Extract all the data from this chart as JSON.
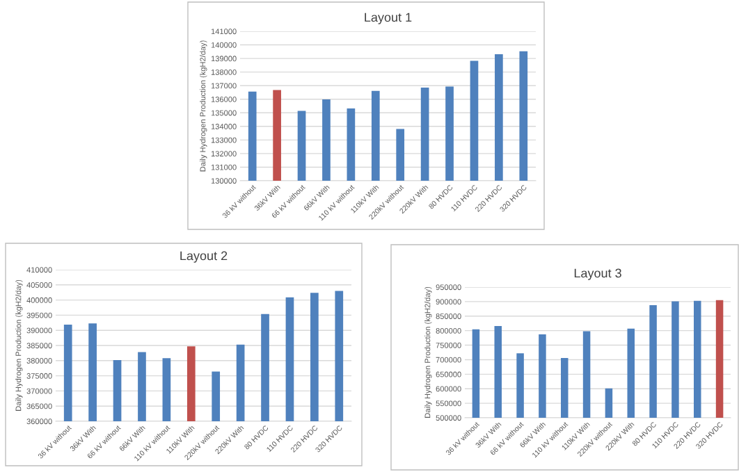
{
  "chart_data": [
    {
      "type": "bar",
      "title": "Layout 1",
      "ylabel": "Daily Hydrogen Production (kgH2/day)",
      "categories": [
        "36 kV without",
        "36kV With",
        "66 kV without",
        "66kV With",
        "110 kV without",
        "110kV With",
        "220kV without",
        "220kV With",
        "80 HVDC",
        "110 HVDC",
        "220 HVDC",
        "320 HVDC"
      ],
      "values": [
        136560,
        136680,
        135140,
        135980,
        135320,
        136610,
        133810,
        136850,
        136930,
        138830,
        139310,
        139530
      ],
      "colors": [
        "#4f81bd",
        "#c0504d",
        "#4f81bd",
        "#4f81bd",
        "#4f81bd",
        "#4f81bd",
        "#4f81bd",
        "#4f81bd",
        "#4f81bd",
        "#4f81bd",
        "#4f81bd",
        "#4f81bd"
      ],
      "ylim": [
        130000,
        141000
      ],
      "yticks": [
        130000,
        131000,
        132000,
        133000,
        134000,
        135000,
        136000,
        137000,
        138000,
        139000,
        140000,
        141000
      ],
      "grid": "y"
    },
    {
      "type": "bar",
      "title": "Layout 2",
      "ylabel": "Daily Hydrogen Production (kgH2/day)",
      "categories": [
        "36 kV without",
        "36kV With",
        "66 kV without",
        "66kV With",
        "110 kV without",
        "110kV With",
        "220kV without",
        "220kV With",
        "80 HVDC",
        "110 HVDC",
        "220 HVDC",
        "320 HVDC"
      ],
      "values": [
        391900,
        392300,
        380200,
        382800,
        380800,
        384700,
        376400,
        385300,
        395400,
        400900,
        402400,
        403000
      ],
      "colors": [
        "#4f81bd",
        "#4f81bd",
        "#4f81bd",
        "#4f81bd",
        "#4f81bd",
        "#c0504d",
        "#4f81bd",
        "#4f81bd",
        "#4f81bd",
        "#4f81bd",
        "#4f81bd",
        "#4f81bd"
      ],
      "ylim": [
        360000,
        410000
      ],
      "yticks": [
        360000,
        365000,
        370000,
        375000,
        380000,
        385000,
        390000,
        395000,
        400000,
        405000,
        410000
      ],
      "grid": "y"
    },
    {
      "type": "bar",
      "title": "Layout 3",
      "ylabel": "Daily Hydrogen Production (kgH2/day)",
      "categories": [
        "36 kV without",
        "36kV With",
        "66 kV without",
        "66kV With",
        "110 kV without",
        "110kV With",
        "220kV without",
        "220kV With",
        "80 HVDC",
        "110 HVDC",
        "220 HVDC",
        "320 HVDC"
      ],
      "values": [
        804600,
        815700,
        722000,
        787000,
        706000,
        798000,
        601000,
        807000,
        888000,
        901000,
        903000,
        905000
      ],
      "colors": [
        "#4f81bd",
        "#4f81bd",
        "#4f81bd",
        "#4f81bd",
        "#4f81bd",
        "#4f81bd",
        "#4f81bd",
        "#4f81bd",
        "#4f81bd",
        "#4f81bd",
        "#4f81bd",
        "#c0504d"
      ],
      "ylim": [
        500000,
        950000
      ],
      "yticks": [
        500000,
        550000,
        600000,
        650000,
        700000,
        750000,
        800000,
        850000,
        900000,
        950000
      ],
      "grid": "y"
    }
  ]
}
